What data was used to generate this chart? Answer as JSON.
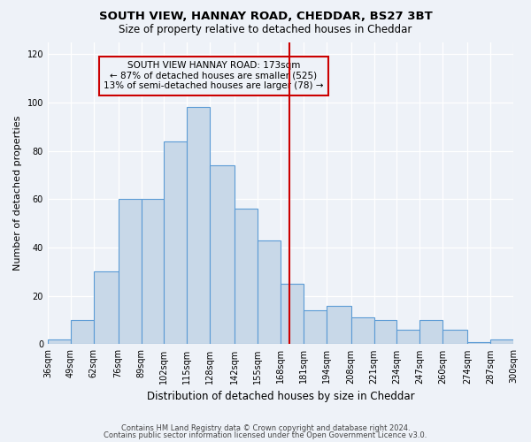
{
  "title": "SOUTH VIEW, HANNAY ROAD, CHEDDAR, BS27 3BT",
  "subtitle": "Size of property relative to detached houses in Cheddar",
  "xlabel": "Distribution of detached houses by size in Cheddar",
  "ylabel": "Number of detached properties",
  "footnote1": "Contains HM Land Registry data © Crown copyright and database right 2024.",
  "footnote2": "Contains public sector information licensed under the Open Government Licence v3.0.",
  "bar_color": "#c8d8e8",
  "bar_edge_color": "#5b9bd5",
  "vertical_line_color": "#cc0000",
  "background_color": "#eef2f8",
  "annotation_title": "SOUTH VIEW HANNAY ROAD: 173sqm",
  "annotation_line1": "← 87% of detached houses are smaller (525)",
  "annotation_line2": "13% of semi-detached houses are larger (78) →",
  "bin_edges": [
    36,
    49,
    62,
    76,
    89,
    102,
    115,
    128,
    142,
    155,
    168,
    181,
    194,
    208,
    221,
    234,
    247,
    260,
    274,
    287,
    300
  ],
  "bar_heights": [
    2,
    10,
    30,
    60,
    60,
    84,
    98,
    74,
    56,
    43,
    25,
    14,
    16,
    11,
    10,
    6,
    10,
    6,
    1,
    2
  ],
  "tick_labels": [
    "36sqm",
    "49sqm",
    "62sqm",
    "76sqm",
    "89sqm",
    "102sqm",
    "115sqm",
    "128sqm",
    "142sqm",
    "155sqm",
    "168sqm",
    "181sqm",
    "194sqm",
    "208sqm",
    "221sqm",
    "234sqm",
    "247sqm",
    "260sqm",
    "274sqm",
    "287sqm",
    "300sqm"
  ],
  "vline_x": 173,
  "ylim": [
    0,
    125
  ],
  "yticks": [
    0,
    20,
    40,
    60,
    80,
    100,
    120
  ]
}
